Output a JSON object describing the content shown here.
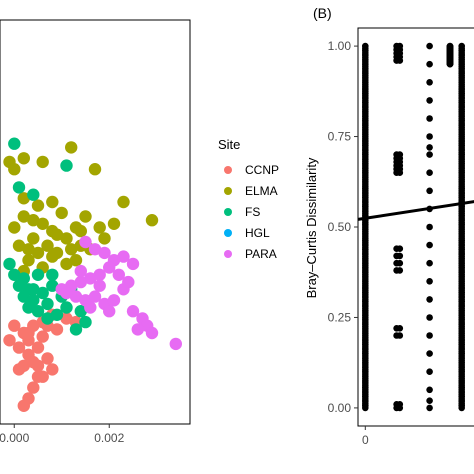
{
  "chart_data": [
    {
      "type": "scatter",
      "panel": "A",
      "xlim": [
        -0.0003,
        0.0037
      ],
      "ylim": [
        -0.04,
        1.07
      ],
      "x_ticks": [
        "0.000",
        "0.002"
      ],
      "x_tick_values": [
        0.0,
        0.002
      ],
      "legend": {
        "title": "Site",
        "placement": "right"
      },
      "series": [
        {
          "name": "CCNP",
          "color": "#F8766D",
          "points": [
            [
              0.0011,
              0.25
            ],
            [
              0.0013,
              0.24
            ],
            [
              0.0009,
              0.22
            ],
            [
              0.0008,
              0.26
            ],
            [
              0.0006,
              0.24
            ],
            [
              0.0004,
              0.23
            ],
            [
              0.0003,
              0.19
            ],
            [
              0.0002,
              0.21
            ],
            [
              0.0,
              0.23
            ],
            [
              -0.0001,
              0.19
            ],
            [
              0.0001,
              0.17
            ],
            [
              0.0003,
              0.15
            ],
            [
              0.0005,
              0.17
            ],
            [
              0.0006,
              0.2
            ],
            [
              0.0007,
              0.23
            ],
            [
              0.0005,
              0.12
            ],
            [
              0.0008,
              0.11
            ],
            [
              0.0006,
              0.09
            ],
            [
              0.0004,
              0.06
            ],
            [
              0.0003,
              0.03
            ],
            [
              0.0002,
              0.01
            ],
            [
              0.0002,
              0.12
            ],
            [
              0.0001,
              0.11
            ],
            [
              0.0004,
              0.13
            ],
            [
              0.0005,
              0.09
            ],
            [
              0.0007,
              0.14
            ],
            [
              0.0003,
              0.21
            ]
          ]
        },
        {
          "name": "ELMA",
          "color": "#A3A500",
          "points": [
            [
              -0.0001,
              0.68
            ],
            [
              0.0,
              0.66
            ],
            [
              0.0002,
              0.69
            ],
            [
              0.0006,
              0.68
            ],
            [
              0.0008,
              0.57
            ],
            [
              0.0012,
              0.72
            ],
            [
              0.0017,
              0.66
            ],
            [
              0.0023,
              0.57
            ],
            [
              0.0029,
              0.52
            ],
            [
              0.0013,
              0.5
            ],
            [
              0.0011,
              0.47
            ],
            [
              0.0008,
              0.49
            ],
            [
              0.0006,
              0.51
            ],
            [
              0.0004,
              0.52
            ],
            [
              0.0002,
              0.53
            ],
            [
              0.0,
              0.5
            ],
            [
              0.0001,
              0.45
            ],
            [
              0.0003,
              0.44
            ],
            [
              0.0005,
              0.43
            ],
            [
              0.0007,
              0.45
            ],
            [
              0.0009,
              0.43
            ],
            [
              0.0012,
              0.44
            ],
            [
              0.0014,
              0.45
            ],
            [
              0.0016,
              0.44
            ],
            [
              0.0019,
              0.47
            ],
            [
              0.0021,
              0.51
            ],
            [
              0.0018,
              0.5
            ],
            [
              0.0015,
              0.53
            ],
            [
              0.001,
              0.54
            ],
            [
              0.0005,
              0.56
            ],
            [
              0.0002,
              0.58
            ],
            [
              0.0003,
              0.41
            ],
            [
              0.0006,
              0.39
            ],
            [
              0.0008,
              0.42
            ],
            [
              0.0011,
              0.4
            ],
            [
              0.0013,
              0.41
            ],
            [
              0.0002,
              0.38
            ],
            [
              0.0004,
              0.47
            ],
            [
              0.0009,
              0.48
            ],
            [
              0.0014,
              0.49
            ]
          ]
        },
        {
          "name": "FS",
          "color": "#00BF7D",
          "points": [
            [
              0.0,
              0.73
            ],
            [
              0.0011,
              0.67
            ],
            [
              0.0001,
              0.61
            ],
            [
              0.0004,
              0.59
            ],
            [
              -0.0001,
              0.4
            ],
            [
              0.0,
              0.37
            ],
            [
              0.0002,
              0.36
            ],
            [
              0.0003,
              0.33
            ],
            [
              0.0001,
              0.34
            ],
            [
              0.0005,
              0.37
            ],
            [
              0.0002,
              0.31
            ],
            [
              0.0004,
              0.3
            ],
            [
              0.0006,
              0.32
            ],
            [
              0.0008,
              0.34
            ],
            [
              0.0003,
              0.28
            ],
            [
              0.0005,
              0.27
            ],
            [
              0.0007,
              0.29
            ],
            [
              0.0009,
              0.26
            ],
            [
              0.0011,
              0.28
            ],
            [
              0.001,
              0.31
            ],
            [
              0.0012,
              0.33
            ],
            [
              0.0008,
              0.37
            ],
            [
              0.0007,
              0.25
            ],
            [
              0.0014,
              0.27
            ],
            [
              0.0015,
              0.24
            ],
            [
              0.0013,
              0.22
            ],
            [
              0.0004,
              0.33
            ]
          ]
        },
        {
          "name": "HGL",
          "color": "#00B0F6",
          "points": []
        },
        {
          "name": "PARA",
          "color": "#E76BF3",
          "points": [
            [
              0.0015,
              0.46
            ],
            [
              0.0017,
              0.44
            ],
            [
              0.0019,
              0.43
            ],
            [
              0.0021,
              0.41
            ],
            [
              0.0023,
              0.42
            ],
            [
              0.0025,
              0.4
            ],
            [
              0.002,
              0.39
            ],
            [
              0.0018,
              0.37
            ],
            [
              0.0016,
              0.36
            ],
            [
              0.0014,
              0.35
            ],
            [
              0.0012,
              0.34
            ],
            [
              0.001,
              0.33
            ],
            [
              0.0013,
              0.31
            ],
            [
              0.0015,
              0.3
            ],
            [
              0.0017,
              0.31
            ],
            [
              0.0019,
              0.29
            ],
            [
              0.0021,
              0.3
            ],
            [
              0.0023,
              0.33
            ],
            [
              0.0024,
              0.35
            ],
            [
              0.0022,
              0.37
            ],
            [
              0.0018,
              0.34
            ],
            [
              0.0016,
              0.28
            ],
            [
              0.002,
              0.27
            ],
            [
              0.0025,
              0.27
            ],
            [
              0.0027,
              0.25
            ],
            [
              0.0028,
              0.23
            ],
            [
              0.0029,
              0.21
            ],
            [
              0.0026,
              0.22
            ],
            [
              0.0034,
              0.18
            ],
            [
              0.0011,
              0.32
            ],
            [
              0.0014,
              0.38
            ]
          ]
        }
      ]
    },
    {
      "type": "scatter",
      "panel": "B",
      "title": "(B)",
      "ylabel": "Bray–Curtis Dissimilarity",
      "xlim": [
        -0.25,
        4.2
      ],
      "ylim": [
        -0.05,
        1.05
      ],
      "x_ticks": [
        "0"
      ],
      "x_tick_values": [
        0
      ],
      "y_ticks": [
        "0.00",
        "0.25",
        "0.50",
        "0.75",
        "1.00"
      ],
      "y_tick_values": [
        0.0,
        0.25,
        0.5,
        0.75,
        1.0
      ],
      "color": "#000000",
      "columns": [
        {
          "x": 0.0,
          "dense_from": 0.0,
          "dense_to": 1.0
        },
        {
          "x": 3.3,
          "dense_from": 0.0,
          "dense_to": 1.0
        },
        {
          "x": 2.9,
          "dense_from": 0.95,
          "dense_to": 1.0
        },
        {
          "x": 1.07,
          "values": [
            0.0,
            0.01,
            0.2,
            0.22,
            0.38,
            0.4,
            0.42,
            0.44,
            0.65,
            0.66,
            0.67,
            0.68,
            0.69,
            0.7,
            0.96,
            0.97,
            0.98,
            0.99,
            1.0
          ]
        },
        {
          "x": 1.18,
          "values": [
            0.0,
            0.01,
            0.2,
            0.22,
            0.38,
            0.4,
            0.42,
            0.44,
            0.65,
            0.66,
            0.67,
            0.68,
            0.69,
            0.7,
            0.96,
            0.97,
            0.98,
            0.99,
            1.0
          ]
        },
        {
          "x": 2.2,
          "values": [
            0.0,
            0.02,
            0.05,
            0.1,
            0.15,
            0.2,
            0.25,
            0.3,
            0.35,
            0.4,
            0.45,
            0.5,
            0.55,
            0.6,
            0.65,
            0.7,
            0.72,
            0.75,
            0.8,
            0.85,
            0.9,
            0.95,
            1.0
          ]
        }
      ],
      "fit_line": {
        "x": [
          -0.25,
          4.2
        ],
        "y": [
          0.521,
          0.576
        ]
      }
    }
  ]
}
